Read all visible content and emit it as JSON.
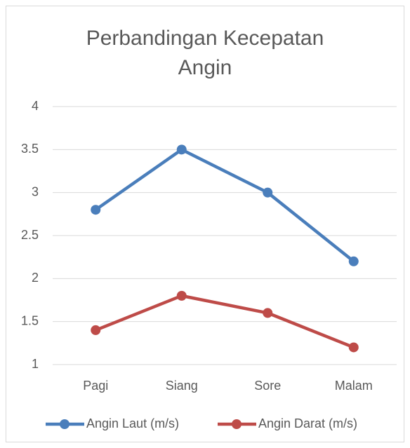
{
  "chart_data": {
    "type": "line",
    "title": "Perbandingan Kecepatan Angin",
    "categories": [
      "Pagi",
      "Siang",
      "Sore",
      "Malam"
    ],
    "series": [
      {
        "name": "Angin Laut (m/s)",
        "color": "#4a7ebb",
        "values": [
          2.8,
          3.5,
          3,
          2.2
        ]
      },
      {
        "name": "Angin Darat (m/s)",
        "color": "#be4b48",
        "values": [
          1.4,
          1.8,
          1.6,
          1.2
        ]
      }
    ],
    "ylim": [
      1,
      4
    ],
    "yticks": [
      1,
      1.5,
      2,
      2.5,
      3,
      3.5,
      4
    ],
    "grid": true,
    "legend": "bottom"
  }
}
